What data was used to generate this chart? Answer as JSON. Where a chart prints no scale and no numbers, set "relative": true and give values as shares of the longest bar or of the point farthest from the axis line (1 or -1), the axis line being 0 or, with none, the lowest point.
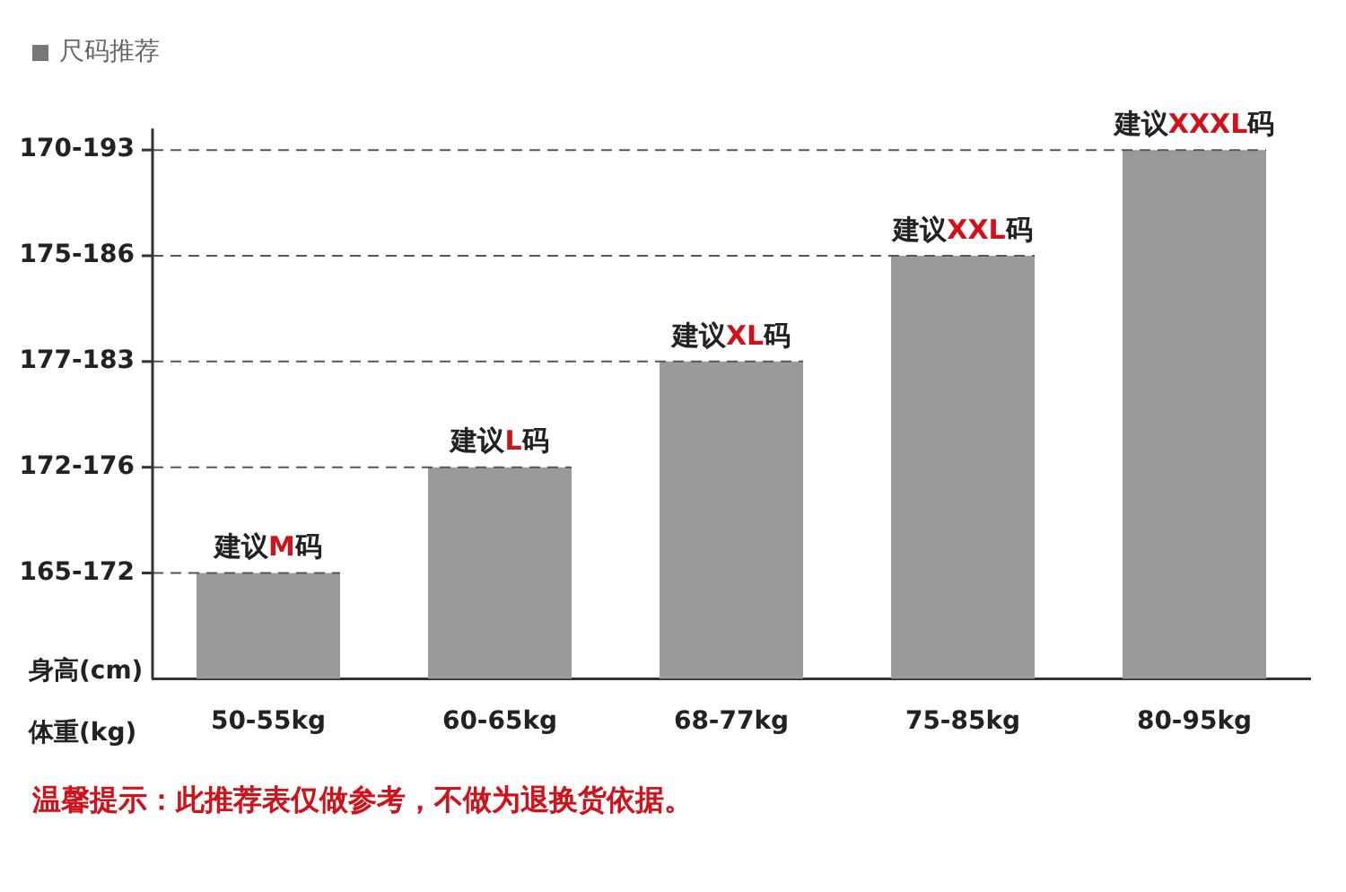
{
  "chart_data": {
    "type": "bar",
    "title": "尺码推荐",
    "xlabel": "体重(kg)",
    "ylabel": "身高(cm)",
    "categories": [
      "50-55kg",
      "60-65kg",
      "68-77kg",
      "75-85kg",
      "80-95kg"
    ],
    "values": [
      0.2,
      0.4,
      0.6,
      0.8,
      1
    ],
    "color": "#9a9a9a",
    "relative": true,
    "grid": false,
    "legend": false,
    "ref_lines": [
      {
        "axis": "y",
        "value": 0.2,
        "color": "#555555",
        "line_style": "dashed"
      },
      {
        "axis": "y",
        "value": 0.4,
        "color": "#555555",
        "line_style": "dashed"
      },
      {
        "axis": "y",
        "value": 0.6,
        "color": "#555555",
        "line_style": "dashed"
      },
      {
        "axis": "y",
        "value": 0.8,
        "color": "#555555",
        "line_style": "dashed"
      },
      {
        "axis": "y",
        "value": 1,
        "color": "#555555",
        "line_style": "dashed"
      }
    ],
    "annotations": [
      "165-172",
      "172-176",
      "177-183",
      "175-186",
      "170-193",
      {
        "text": "建议M码",
        "x": "50-55kg",
        "y": 0.2
      },
      {
        "text": "建议L码",
        "x": "60-65kg",
        "y": 0.4
      },
      {
        "text": "建议XL码",
        "x": "68-77kg",
        "y": 0.6
      },
      {
        "text": "建议XXL码",
        "x": "75-85kg",
        "y": 0.8
      },
      {
        "text": "建议XXXL码",
        "x": "80-95kg",
        "y": 1
      },
      "温馨提示：此推荐表仅做参考，不做为退换货依据。"
    ]
  }
}
